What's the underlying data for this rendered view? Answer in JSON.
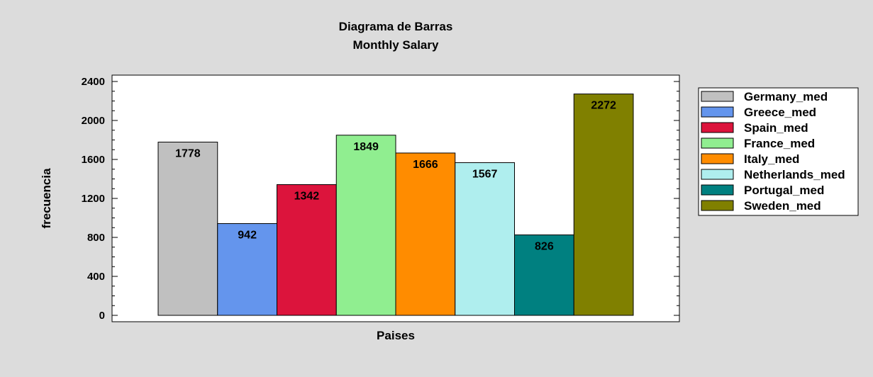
{
  "chart_data": {
    "type": "bar",
    "title": "Diagrama de Barras",
    "subtitle": "Monthly Salary",
    "xlabel": "Paises",
    "ylabel": "frecuencia",
    "ylim": [
      0,
      2400
    ],
    "yticks": [
      0,
      400,
      800,
      1200,
      1600,
      2000,
      2400
    ],
    "grid": false,
    "legend_position": "right",
    "series": [
      {
        "name": "Germany_med",
        "value": 1778,
        "label": "1778",
        "color": "#c0c0c0"
      },
      {
        "name": "Greece_med",
        "value": 942,
        "label": "942",
        "color": "#6495ed"
      },
      {
        "name": "Spain_med",
        "value": 1342,
        "label": "1342",
        "color": "#dc143c"
      },
      {
        "name": "France_med",
        "value": 1849,
        "label": "1849",
        "color": "#90ee90"
      },
      {
        "name": "Italy_med",
        "value": 1666,
        "label": "1666",
        "color": "#ff8c00"
      },
      {
        "name": "Netherlands_med",
        "value": 1567,
        "label": "1567",
        "color": "#afeeee"
      },
      {
        "name": "Portugal_med",
        "value": 826,
        "label": "826",
        "color": "#008080"
      },
      {
        "name": "Sweden_med",
        "value": 2272,
        "label": "2272",
        "color": "#808000"
      }
    ]
  }
}
